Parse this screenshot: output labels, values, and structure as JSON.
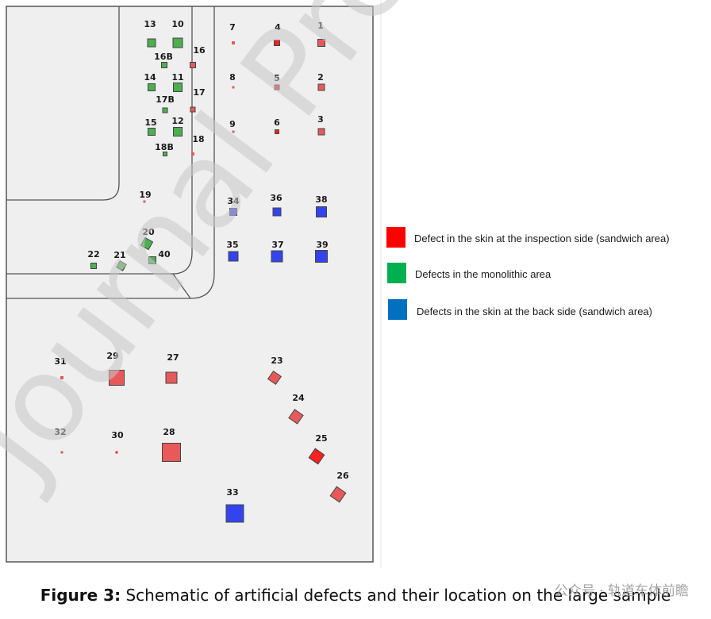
{
  "watermark": "Journal Pre-proof",
  "legend": [
    {
      "color": "#ff0000",
      "label": "Defect in the skin at the inspection side (sandwich area)"
    },
    {
      "color": "#00b050",
      "label": "Defects in the monolithic area"
    },
    {
      "color": "#0070c0",
      "label": "Defects in the skin at the back side (sandwich area)"
    }
  ],
  "caption": {
    "prefix": "Figure 3:",
    "text": " Schematic of artificial defects and their location on the large sample"
  },
  "overlay": "公众号 · 轨道车体前瞻",
  "defects": [
    {
      "label": "13",
      "type": "monolithic"
    },
    {
      "label": "10",
      "type": "monolithic"
    },
    {
      "label": "16B",
      "type": "monolithic"
    },
    {
      "label": "16",
      "type": "inspection"
    },
    {
      "label": "14",
      "type": "monolithic"
    },
    {
      "label": "11",
      "type": "monolithic"
    },
    {
      "label": "17B",
      "type": "monolithic"
    },
    {
      "label": "17",
      "type": "inspection"
    },
    {
      "label": "15",
      "type": "monolithic"
    },
    {
      "label": "12",
      "type": "monolithic"
    },
    {
      "label": "18B",
      "type": "monolithic"
    },
    {
      "label": "18",
      "type": "inspection"
    },
    {
      "label": "7",
      "type": "inspection"
    },
    {
      "label": "4",
      "type": "inspection"
    },
    {
      "label": "1",
      "type": "inspection"
    },
    {
      "label": "8",
      "type": "inspection"
    },
    {
      "label": "5",
      "type": "inspection"
    },
    {
      "label": "2",
      "type": "inspection"
    },
    {
      "label": "9",
      "type": "inspection"
    },
    {
      "label": "6",
      "type": "inspection"
    },
    {
      "label": "3",
      "type": "inspection"
    },
    {
      "label": "19",
      "type": "inspection"
    },
    {
      "label": "34",
      "type": "back"
    },
    {
      "label": "36",
      "type": "back"
    },
    {
      "label": "38",
      "type": "back"
    },
    {
      "label": "35",
      "type": "back"
    },
    {
      "label": "37",
      "type": "back"
    },
    {
      "label": "39",
      "type": "back"
    },
    {
      "label": "20",
      "type": "monolithic"
    },
    {
      "label": "22",
      "type": "monolithic"
    },
    {
      "label": "21",
      "type": "monolithic"
    },
    {
      "label": "40",
      "type": "monolithic"
    },
    {
      "label": "31",
      "type": "inspection"
    },
    {
      "label": "29",
      "type": "inspection"
    },
    {
      "label": "27",
      "type": "inspection"
    },
    {
      "label": "23",
      "type": "inspection"
    },
    {
      "label": "24",
      "type": "inspection"
    },
    {
      "label": "32",
      "type": "inspection"
    },
    {
      "label": "30",
      "type": "inspection"
    },
    {
      "label": "28",
      "type": "inspection"
    },
    {
      "label": "25",
      "type": "inspection"
    },
    {
      "label": "26",
      "type": "inspection"
    },
    {
      "label": "33",
      "type": "back"
    }
  ],
  "colors": {
    "inspection": "#e85a5a",
    "inspection_solid": "#ff2020",
    "monolithic": "#4caf50",
    "back": "#3344ee",
    "panel": "#efefef",
    "outline": "#555555"
  }
}
